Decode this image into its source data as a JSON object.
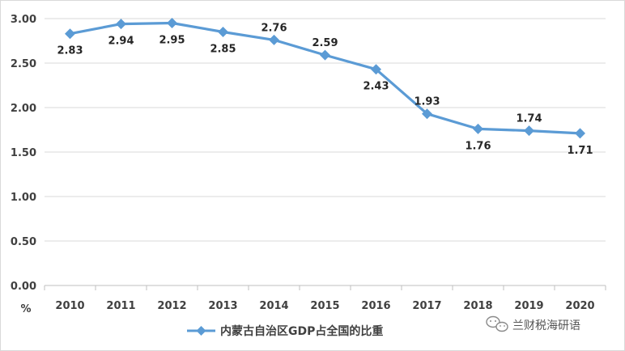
{
  "chart_data": {
    "type": "line",
    "x": [
      "2010",
      "2011",
      "2012",
      "2013",
      "2014",
      "2015",
      "2016",
      "2017",
      "2018",
      "2019",
      "2020"
    ],
    "series": [
      {
        "name": "内蒙古自治区GDP占全国的比重",
        "values": [
          2.83,
          2.94,
          2.95,
          2.85,
          2.76,
          2.59,
          2.43,
          1.93,
          1.76,
          1.74,
          1.71
        ],
        "color": "#5b9bd5",
        "marker": "diamond"
      }
    ],
    "ylabel": "%",
    "ylim": [
      0,
      3
    ],
    "yticks": [
      "0.00",
      "0.50",
      "1.00",
      "1.50",
      "2.00",
      "2.50",
      "3.00"
    ],
    "data_labels": [
      "2.83",
      "2.94",
      "2.95",
      "2.85",
      "2.76",
      "2.59",
      "2.43",
      "1.93",
      "1.76",
      "1.74",
      "1.71"
    ],
    "label_side": [
      "below",
      "below",
      "below",
      "below",
      "above",
      "above",
      "below",
      "above",
      "below",
      "above",
      "below"
    ],
    "grid": true,
    "legend": "bottom-center"
  },
  "watermark": {
    "icon": "wechat-icon",
    "text": "兰财税海研语"
  }
}
